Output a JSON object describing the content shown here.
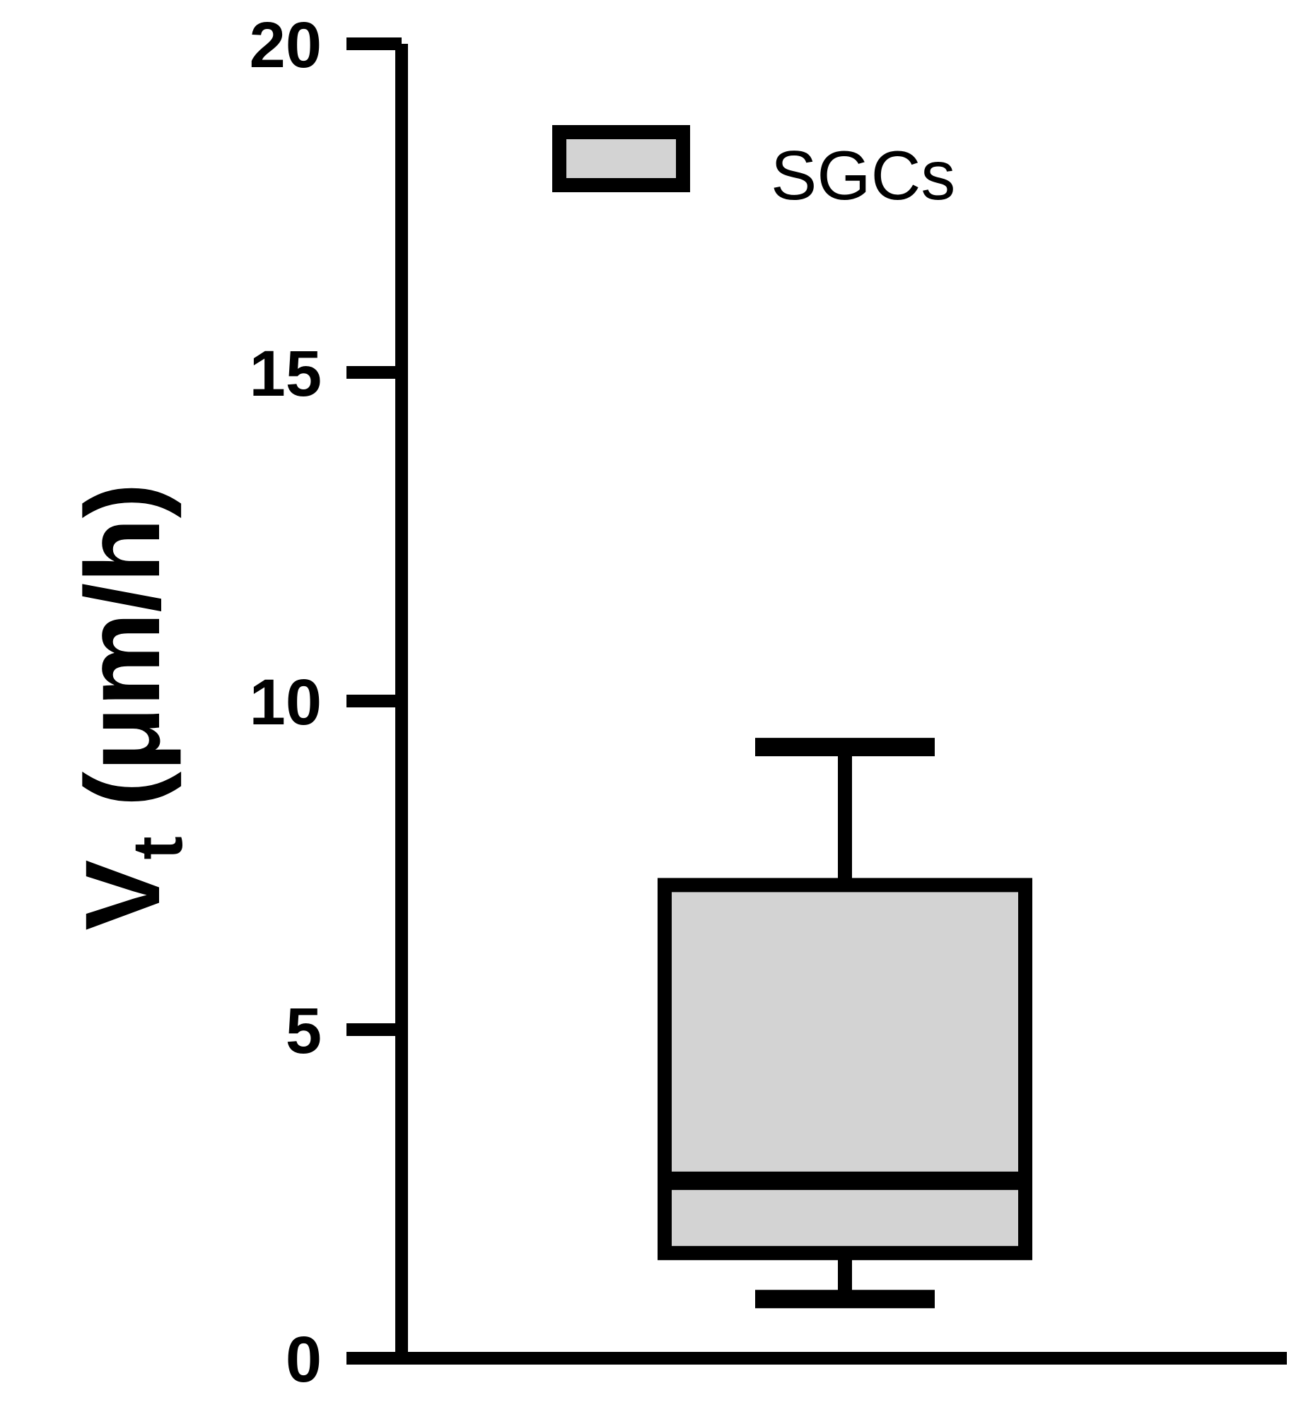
{
  "chart_data": {
    "type": "box",
    "ylabel": {
      "main": "V",
      "subscript": "t",
      "unit": " (μm/h)"
    },
    "ylim": [
      0,
      20
    ],
    "yticks": [
      0,
      5,
      10,
      15,
      20
    ],
    "grid": false,
    "legend": {
      "position": "top-right",
      "entries": [
        "SGCs"
      ]
    },
    "series": [
      {
        "name": "SGCs",
        "min": 0.9,
        "q1": 1.6,
        "median": 2.7,
        "q3": 7.2,
        "max": 9.3,
        "fill": "#d3d3d3"
      }
    ]
  }
}
